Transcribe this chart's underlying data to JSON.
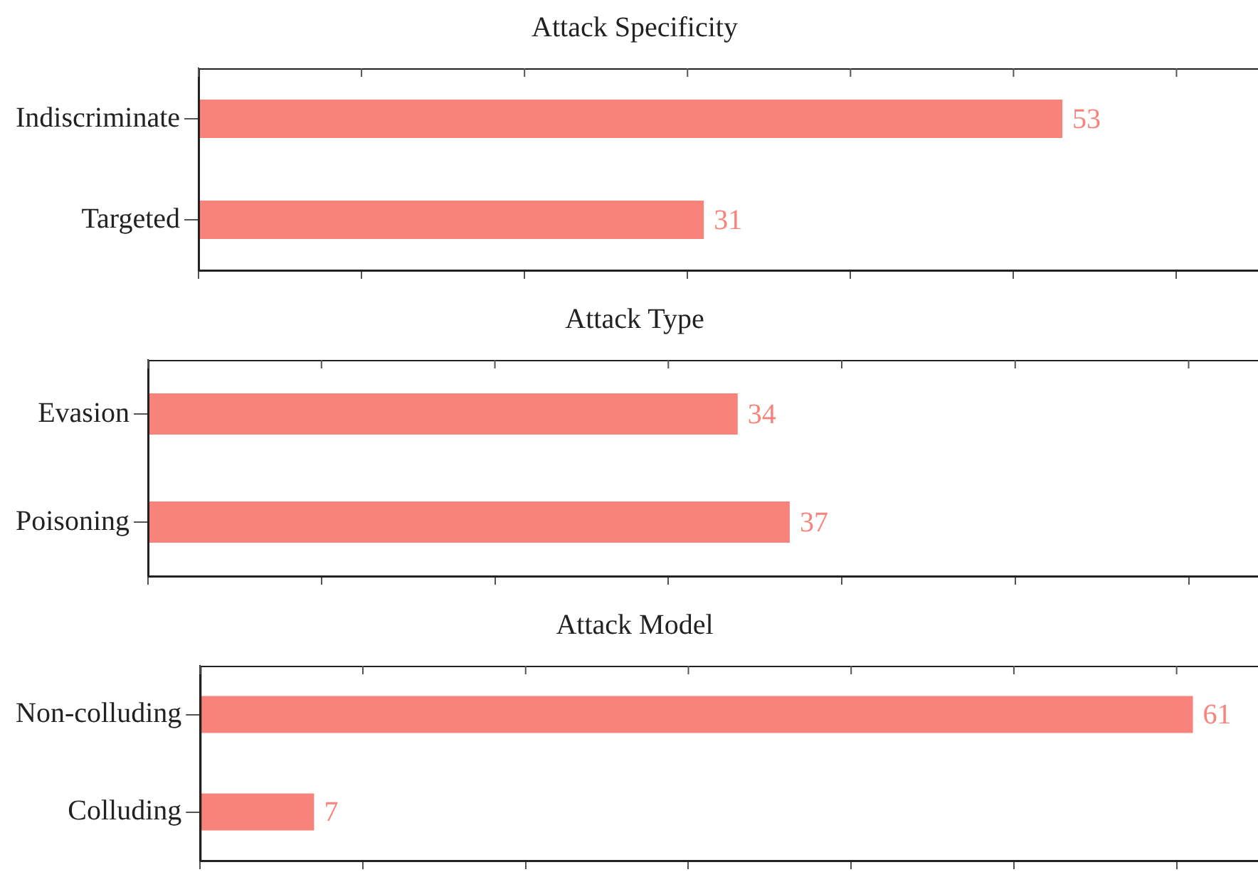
{
  "chart_data": [
    {
      "type": "bar",
      "title": "Attack Specificity",
      "orientation": "horizontal",
      "categories": [
        "Indiscriminate",
        "Targeted"
      ],
      "values": [
        53,
        31
      ],
      "color": "#f8837a",
      "data_labels": true,
      "xlim": [
        0,
        65
      ],
      "xticks": [
        {
          "value": 0,
          "label": null
        },
        {
          "value": 10,
          "label": null
        },
        {
          "value": 20,
          "label": null
        },
        {
          "value": 30,
          "label": null
        },
        {
          "value": 40,
          "label": null
        },
        {
          "value": 50,
          "label": null
        },
        {
          "value": 60,
          "label": null
        }
      ],
      "tick_labels": "y",
      "grid": false,
      "legend": false
    },
    {
      "type": "bar",
      "title": "Attack Type",
      "orientation": "horizontal",
      "categories": [
        "Evasion",
        "Poisoning"
      ],
      "values": [
        34,
        37
      ],
      "color": "#f8837a",
      "data_labels": true,
      "xlim": [
        0,
        64
      ],
      "xticks": [
        {
          "value": 0,
          "label": null
        },
        {
          "value": 10,
          "label": null
        },
        {
          "value": 20,
          "label": null
        },
        {
          "value": 30,
          "label": null
        },
        {
          "value": 40,
          "label": null
        },
        {
          "value": 50,
          "label": null
        },
        {
          "value": 60,
          "label": null
        }
      ],
      "tick_labels": "y",
      "grid": false,
      "legend": false
    },
    {
      "type": "bar",
      "title": "Attack Model",
      "orientation": "horizontal",
      "categories": [
        "Non-colluding",
        "Colluding"
      ],
      "values": [
        61,
        7
      ],
      "color": "#f8837a",
      "data_labels": true,
      "xlim": [
        0,
        65
      ],
      "xticks": [
        {
          "value": 0,
          "label": null
        },
        {
          "value": 10,
          "label": null
        },
        {
          "value": 20,
          "label": null
        },
        {
          "value": 30,
          "label": null
        },
        {
          "value": 40,
          "label": null
        },
        {
          "value": 50,
          "label": null
        },
        {
          "value": 60,
          "label": null
        }
      ],
      "tick_labels": "y",
      "grid": false,
      "legend": false
    }
  ]
}
